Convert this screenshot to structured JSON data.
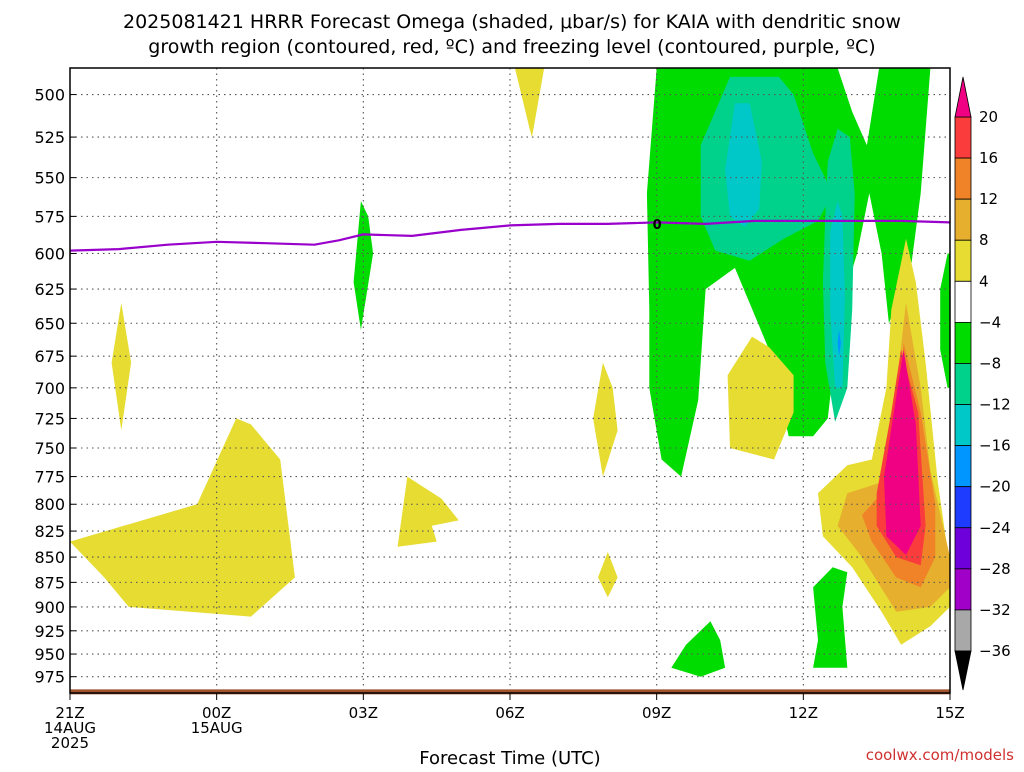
{
  "chart_data": {
    "type": "heatmap",
    "title_lines": [
      "2025081421 HRRR Forecast Omega (shaded, μbar/s) for KAIA with dendritic snow",
      "growth region (contoured, red, ºC) and freezing level (contoured, purple, ºC)"
    ],
    "xlabel": "Forecast Time (UTC)",
    "credit": "coolwx.com/models",
    "x_hours": [
      0,
      3,
      6,
      9,
      12,
      15,
      18
    ],
    "x_ticks": [
      {
        "hour": 0,
        "lines": [
          "21Z",
          "14AUG",
          "2025"
        ]
      },
      {
        "hour": 3,
        "lines": [
          "00Z",
          "15AUG"
        ]
      },
      {
        "hour": 6,
        "lines": [
          "03Z"
        ]
      },
      {
        "hour": 9,
        "lines": [
          "06Z"
        ]
      },
      {
        "hour": 12,
        "lines": [
          "09Z"
        ]
      },
      {
        "hour": 15,
        "lines": [
          "12Z"
        ]
      },
      {
        "hour": 18,
        "lines": [
          "15Z"
        ]
      }
    ],
    "xlim": [
      0,
      18
    ],
    "y_ticks": [
      500,
      525,
      550,
      575,
      600,
      625,
      650,
      675,
      700,
      725,
      750,
      775,
      800,
      825,
      850,
      875,
      900,
      925,
      950,
      975
    ],
    "ylim": [
      485,
      990
    ],
    "y_scale": "log",
    "grid": true,
    "surface_pressure": 987,
    "surface_color": "#a0522d",
    "colorbar": {
      "levels": [
        -36,
        -32,
        -28,
        -24,
        -20,
        -16,
        -12,
        -8,
        -4,
        4,
        8,
        12,
        16,
        20
      ],
      "labels": [
        "20",
        "16",
        "12",
        "8",
        "4",
        "−4",
        "−8",
        "−12",
        "−16",
        "−20",
        "−24",
        "−28",
        "−32",
        "−36"
      ],
      "colors": [
        "#a8a8a8",
        "#a000c8",
        "#6e00dc",
        "#1e3cff",
        "#0096ff",
        "#00c8c8",
        "#00d28c",
        "#00dc00",
        "#ffffff",
        "#e6dc32",
        "#e6af2d",
        "#f08228",
        "#fa3c3c",
        "#f00082"
      ]
    },
    "freezing_level": {
      "label": "0",
      "color": "#9900cc",
      "points": [
        [
          0,
          598
        ],
        [
          1,
          597
        ],
        [
          2,
          594
        ],
        [
          3,
          592
        ],
        [
          4,
          593
        ],
        [
          5,
          594
        ],
        [
          5.5,
          591
        ],
        [
          6,
          587
        ],
        [
          7,
          588
        ],
        [
          8,
          584
        ],
        [
          9,
          581
        ],
        [
          10,
          580
        ],
        [
          11,
          580
        ],
        [
          12,
          579
        ],
        [
          13,
          580
        ],
        [
          14,
          578
        ],
        [
          15,
          578
        ],
        [
          16,
          578
        ],
        [
          17,
          578
        ],
        [
          18,
          579
        ]
      ]
    },
    "regions": [
      {
        "name": "green",
        "color": "#00dc00",
        "points": [
          [
            14.9,
            485
          ],
          [
            12,
            485
          ],
          [
            11.8,
            560
          ],
          [
            11.85,
            640
          ],
          [
            11.85,
            700
          ],
          [
            12.1,
            760
          ],
          [
            12.5,
            775
          ],
          [
            12.85,
            710
          ],
          [
            13,
            625
          ],
          [
            13.6,
            610
          ],
          [
            14.3,
            670
          ],
          [
            14.7,
            740
          ],
          [
            15.2,
            740
          ],
          [
            15.5,
            725
          ],
          [
            15.75,
            640
          ],
          [
            16.1,
            600
          ],
          [
            16.35,
            560
          ],
          [
            16.6,
            600
          ],
          [
            16.75,
            650
          ],
          [
            17.2,
            610
          ],
          [
            17.4,
            560
          ],
          [
            17.6,
            485
          ],
          [
            16.55,
            485
          ],
          [
            16.3,
            530
          ],
          [
            16,
            510
          ],
          [
            15.7,
            485
          ]
        ]
      },
      {
        "name": "teal-a",
        "color": "#00d28c",
        "points": [
          [
            13.5,
            490
          ],
          [
            12.9,
            530
          ],
          [
            12.9,
            575
          ],
          [
            13.2,
            598
          ],
          [
            13.9,
            605
          ],
          [
            14.6,
            590
          ],
          [
            15.3,
            578
          ],
          [
            15.6,
            560
          ],
          [
            15.2,
            535
          ],
          [
            14.8,
            500
          ],
          [
            14.5,
            490
          ]
        ]
      },
      {
        "name": "teal-b",
        "color": "#00d28c",
        "points": [
          [
            15.45,
            575
          ],
          [
            15.4,
            620
          ],
          [
            15.45,
            680
          ],
          [
            15.65,
            728
          ],
          [
            15.9,
            700
          ],
          [
            16,
            640
          ],
          [
            16.05,
            560
          ],
          [
            15.95,
            525
          ],
          [
            15.7,
            520
          ],
          [
            15.5,
            540
          ]
        ]
      },
      {
        "name": "cyan-a",
        "color": "#00c8c8",
        "points": [
          [
            13.6,
            505
          ],
          [
            13.4,
            545
          ],
          [
            13.5,
            575
          ],
          [
            13.8,
            582
          ],
          [
            14.1,
            570
          ],
          [
            14.15,
            540
          ],
          [
            13.9,
            505
          ]
        ]
      },
      {
        "name": "cyan-b",
        "color": "#00c8c8",
        "points": [
          [
            15.55,
            585
          ],
          [
            15.55,
            640
          ],
          [
            15.65,
            700
          ],
          [
            15.8,
            700
          ],
          [
            15.85,
            630
          ],
          [
            15.8,
            575
          ],
          [
            15.7,
            565
          ]
        ]
      },
      {
        "name": "blue-dot",
        "color": "#0096ff",
        "points": [
          [
            15.73,
            655
          ],
          [
            15.7,
            665
          ],
          [
            15.73,
            675
          ],
          [
            15.77,
            665
          ]
        ]
      },
      {
        "name": "green-right",
        "color": "#00dc00",
        "points": [
          [
            17.95,
            600
          ],
          [
            17.8,
            625
          ],
          [
            17.8,
            670
          ],
          [
            17.95,
            700
          ],
          [
            18,
            700
          ],
          [
            18,
            600
          ]
        ]
      },
      {
        "name": "green-b1",
        "color": "#00dc00",
        "points": [
          [
            5.95,
            565
          ],
          [
            5.8,
            620
          ],
          [
            5.95,
            655
          ],
          [
            6.2,
            600
          ],
          [
            6.1,
            575
          ]
        ]
      },
      {
        "name": "green-b2",
        "color": "#00dc00",
        "points": [
          [
            15.6,
            860
          ],
          [
            15.2,
            880
          ],
          [
            15.3,
            935
          ],
          [
            15.2,
            965
          ],
          [
            15.9,
            965
          ],
          [
            15.8,
            900
          ],
          [
            15.9,
            865
          ]
        ]
      },
      {
        "name": "green-b3",
        "color": "#00dc00",
        "points": [
          [
            13.1,
            915
          ],
          [
            12.6,
            940
          ],
          [
            12.3,
            965
          ],
          [
            12.9,
            975
          ],
          [
            13.4,
            965
          ],
          [
            13.3,
            935
          ]
        ]
      },
      {
        "name": "yellow-warm",
        "color": "#e6dc32",
        "points": [
          [
            17.1,
            590
          ],
          [
            16.8,
            640
          ],
          [
            16.7,
            700
          ],
          [
            16.4,
            760
          ],
          [
            15.9,
            765
          ],
          [
            15.3,
            790
          ],
          [
            15.4,
            830
          ],
          [
            16,
            860
          ],
          [
            16.6,
            905
          ],
          [
            17,
            940
          ],
          [
            17.6,
            920
          ],
          [
            18,
            900
          ],
          [
            18,
            860
          ],
          [
            17.75,
            780
          ],
          [
            17.5,
            680
          ],
          [
            17.3,
            620
          ]
        ]
      },
      {
        "name": "orange-light",
        "color": "#e6af2d",
        "points": [
          [
            17.1,
            635
          ],
          [
            16.9,
            700
          ],
          [
            16.6,
            780
          ],
          [
            15.9,
            790
          ],
          [
            15.7,
            820
          ],
          [
            16.2,
            850
          ],
          [
            16.9,
            905
          ],
          [
            17.6,
            900
          ],
          [
            18,
            880
          ],
          [
            18,
            850
          ],
          [
            17.6,
            770
          ],
          [
            17.4,
            700
          ]
        ]
      },
      {
        "name": "orange",
        "color": "#f08228",
        "points": [
          [
            17.05,
            665
          ],
          [
            16.9,
            720
          ],
          [
            16.6,
            790
          ],
          [
            16.2,
            810
          ],
          [
            16.4,
            835
          ],
          [
            16.9,
            870
          ],
          [
            17.4,
            880
          ],
          [
            17.7,
            850
          ],
          [
            17.7,
            800
          ],
          [
            17.4,
            720
          ]
        ]
      },
      {
        "name": "red",
        "color": "#fa3c3c",
        "points": [
          [
            17,
            670
          ],
          [
            16.8,
            720
          ],
          [
            16.5,
            790
          ],
          [
            16.5,
            820
          ],
          [
            16.9,
            850
          ],
          [
            17.4,
            858
          ],
          [
            17.5,
            820
          ],
          [
            17.35,
            720
          ]
        ]
      },
      {
        "name": "magenta",
        "color": "#f00082",
        "points": [
          [
            17.05,
            670
          ],
          [
            16.85,
            720
          ],
          [
            16.65,
            775
          ],
          [
            16.7,
            830
          ],
          [
            17.1,
            848
          ],
          [
            17.4,
            820
          ],
          [
            17.3,
            730
          ]
        ]
      },
      {
        "name": "yellow-a",
        "color": "#e6dc32",
        "points": [
          [
            3.4,
            725
          ],
          [
            2.6,
            800
          ],
          [
            0,
            835
          ],
          [
            0.7,
            870
          ],
          [
            1.2,
            900
          ],
          [
            3.7,
            910
          ],
          [
            4.6,
            870
          ],
          [
            4.3,
            760
          ],
          [
            3.7,
            730
          ]
        ]
      },
      {
        "name": "yellow-b",
        "color": "#e6dc32",
        "points": [
          [
            6.9,
            775
          ],
          [
            6.7,
            840
          ],
          [
            7.5,
            835
          ],
          [
            7.4,
            820
          ],
          [
            7.95,
            815
          ],
          [
            7.6,
            795
          ]
        ]
      },
      {
        "name": "yellow-c",
        "color": "#e6dc32",
        "points": [
          [
            13.95,
            660
          ],
          [
            13.45,
            690
          ],
          [
            13.5,
            750
          ],
          [
            14.4,
            760
          ],
          [
            14.8,
            720
          ],
          [
            14.8,
            690
          ],
          [
            14.3,
            668
          ]
        ]
      },
      {
        "name": "yellow-d",
        "color": "#e6dc32",
        "points": [
          [
            10.9,
            680
          ],
          [
            10.7,
            725
          ],
          [
            10.9,
            775
          ],
          [
            11.2,
            735
          ],
          [
            11.1,
            700
          ]
        ]
      },
      {
        "name": "yellow-e",
        "color": "#e6dc32",
        "points": [
          [
            11,
            845
          ],
          [
            10.8,
            870
          ],
          [
            11,
            890
          ],
          [
            11.2,
            870
          ]
        ]
      },
      {
        "name": "yellow-f",
        "color": "#e6dc32",
        "points": [
          [
            1.05,
            635
          ],
          [
            0.85,
            680
          ],
          [
            1.05,
            735
          ],
          [
            1.25,
            680
          ]
        ]
      },
      {
        "name": "yellow-g",
        "color": "#e6dc32",
        "points": [
          [
            9.7,
            485
          ],
          [
            9.1,
            485
          ],
          [
            9.4,
            520
          ],
          [
            9.45,
            525
          ]
        ]
      }
    ]
  }
}
